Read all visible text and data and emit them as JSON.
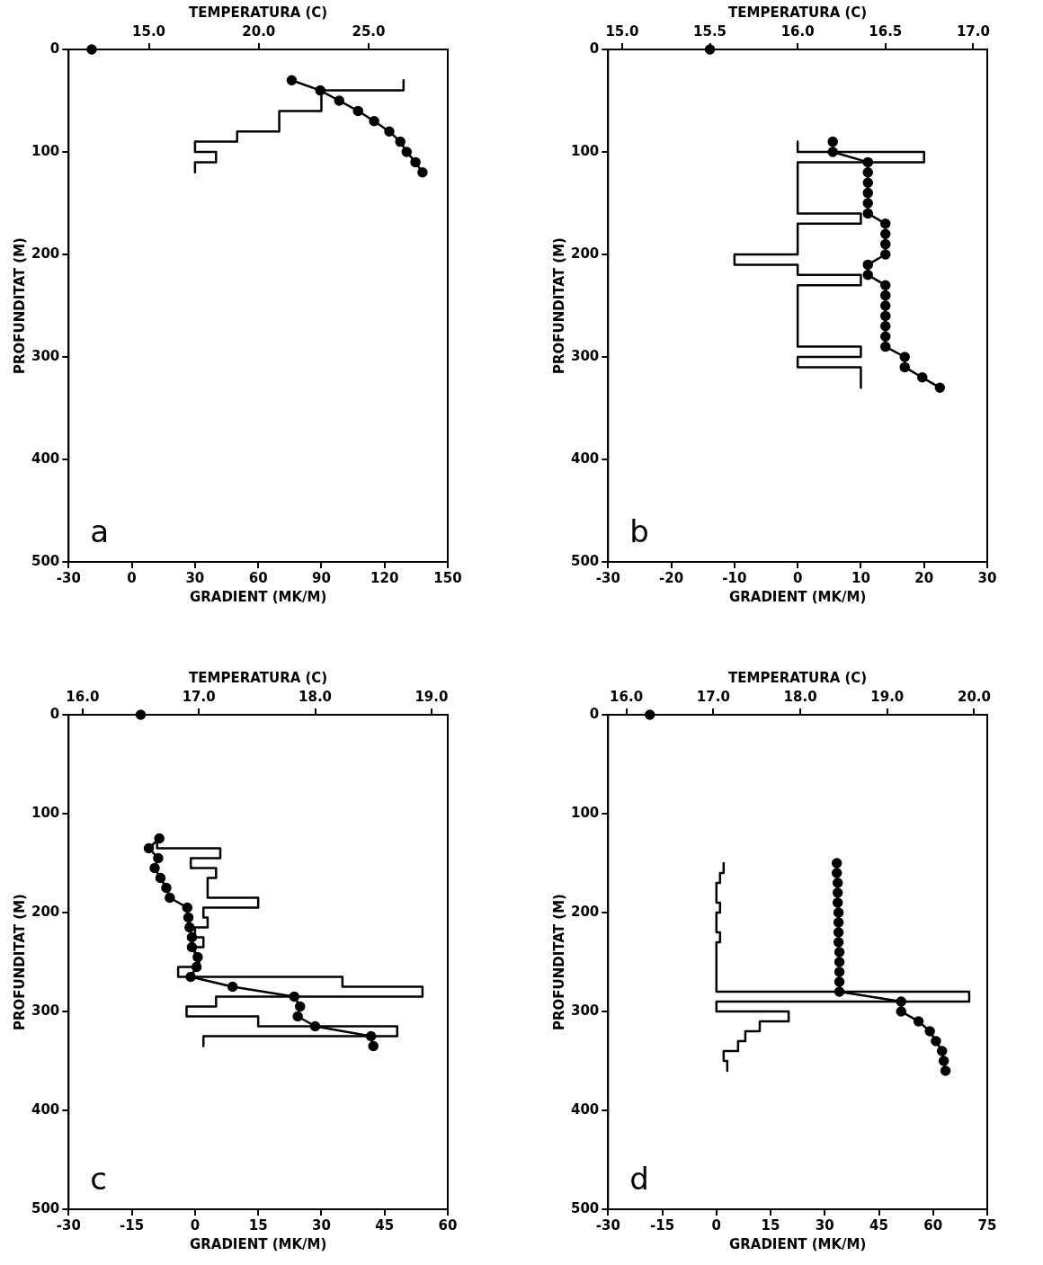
{
  "chart_data": [
    {
      "type": "line",
      "xlabel": "GRADIENT (MK/M)",
      "x2label": "TEMPERATURA (C)",
      "ylabel": "PROFUNDITAT (M)",
      "annotations": [
        "a"
      ],
      "xlim": [
        -30,
        150
      ],
      "xticks": [
        -30,
        0,
        30,
        60,
        90,
        120,
        150
      ],
      "x2lim": [
        11.35,
        28.6
      ],
      "x2ticks": [
        {
          "value": 15,
          "label": "15.0"
        },
        {
          "value": 20,
          "label": "20.0"
        },
        {
          "value": 25,
          "label": "25.0"
        }
      ],
      "ylim": [
        500,
        0
      ],
      "yticks": [
        0,
        100,
        200,
        300,
        400,
        500
      ],
      "series": [
        {
          "type": "line",
          "marker": "none",
          "color": "#000000",
          "x": [
            129,
            129,
            90,
            90,
            70,
            70,
            50,
            50,
            30,
            30,
            40,
            40,
            30,
            30
          ],
          "values": [
            30,
            40,
            40,
            60,
            60,
            80,
            80,
            90,
            90,
            100,
            100,
            110,
            110,
            120
          ]
        },
        {
          "type": "line",
          "marker": "circle",
          "axis": "x2",
          "color": "#000000",
          "x": [
            21.5,
            22.8,
            23.66,
            24.52,
            25.25,
            25.94,
            26.44,
            26.73,
            27.13,
            27.45
          ],
          "values": [
            30,
            40,
            50,
            60,
            70,
            80,
            90,
            100,
            110,
            120
          ]
        },
        {
          "type": "scatter",
          "marker": "circle",
          "axis": "x2",
          "color": "#000000",
          "x": [
            12.4
          ],
          "values": [
            0
          ]
        }
      ]
    },
    {
      "type": "line",
      "xlabel": "GRADIENT (MK/M)",
      "x2label": "TEMPERATURA (C)",
      "ylabel": "PROFUNDITAT (M)",
      "annotations": [
        "b"
      ],
      "xlim": [
        -30,
        30
      ],
      "xticks": [
        -30,
        -20,
        -10,
        0,
        10,
        20,
        30
      ],
      "x2lim": [
        14.92,
        17.08
      ],
      "x2ticks": [
        {
          "value": 15,
          "label": "15.0"
        },
        {
          "value": 15.5,
          "label": "15.5"
        },
        {
          "value": 16,
          "label": "16.0"
        },
        {
          "value": 16.5,
          "label": "16.5"
        },
        {
          "value": 17,
          "label": "17.0"
        }
      ],
      "ylim": [
        500,
        0
      ],
      "yticks": [
        0,
        100,
        200,
        300,
        400,
        500
      ],
      "series": [
        {
          "type": "line",
          "marker": "none",
          "color": "#000000",
          "x": [
            0,
            0,
            20,
            20,
            0,
            0,
            10,
            10,
            0,
            0,
            -10,
            -10,
            0,
            0,
            10,
            10,
            0,
            0,
            10,
            10,
            0,
            0,
            10,
            10
          ],
          "values": [
            90,
            100,
            100,
            110,
            110,
            160,
            160,
            170,
            170,
            200,
            200,
            210,
            210,
            220,
            220,
            230,
            230,
            290,
            290,
            300,
            300,
            310,
            310,
            330
          ]
        },
        {
          "type": "line",
          "marker": "circle",
          "axis": "x2",
          "color": "#000000",
          "x": [
            16.2,
            16.2,
            16.4,
            16.4,
            16.4,
            16.4,
            16.4,
            16.4,
            16.5,
            16.5,
            16.5,
            16.5,
            16.4,
            16.4,
            16.5,
            16.5,
            16.5,
            16.5,
            16.5,
            16.5,
            16.5,
            16.61,
            16.61,
            16.71,
            16.81
          ],
          "values": [
            90,
            100,
            110,
            120,
            130,
            140,
            150,
            160,
            170,
            180,
            190,
            200,
            210,
            220,
            230,
            240,
            250,
            260,
            270,
            280,
            290,
            300,
            310,
            320,
            330
          ]
        },
        {
          "type": "scatter",
          "marker": "circle",
          "axis": "x2",
          "color": "#000000",
          "x": [
            15.5
          ],
          "values": [
            0
          ]
        }
      ]
    },
    {
      "type": "line",
      "xlabel": "GRADIENT (MK/M)",
      "x2label": "TEMPERATURA (C)",
      "ylabel": "PROFUNDITAT (M)",
      "annotations": [
        "c"
      ],
      "xlim": [
        -30,
        60
      ],
      "xticks": [
        -30,
        -15,
        0,
        15,
        30,
        45,
        60
      ],
      "x2lim": [
        15.88,
        19.14
      ],
      "x2ticks": [
        {
          "value": 16,
          "label": "16.0"
        },
        {
          "value": 17,
          "label": "17.0"
        },
        {
          "value": 18,
          "label": "18.0"
        },
        {
          "value": 19,
          "label": "19.0"
        }
      ],
      "ylim": [
        500,
        0
      ],
      "yticks": [
        0,
        100,
        200,
        300,
        400,
        500
      ],
      "series": [
        {
          "type": "line",
          "marker": "none",
          "color": "#000000",
          "x": [
            -9,
            -9,
            6,
            6,
            -1,
            -1,
            5,
            5,
            3,
            3,
            15,
            15,
            2,
            2,
            3,
            3,
            0,
            0,
            2,
            2,
            0,
            0,
            1,
            1,
            -4,
            -4,
            35,
            35,
            54,
            54,
            5,
            5,
            -2,
            -2,
            15,
            15,
            48,
            48,
            2,
            2
          ],
          "values": [
            125,
            135,
            135,
            145,
            145,
            155,
            155,
            165,
            165,
            185,
            185,
            195,
            195,
            205,
            205,
            215,
            215,
            225,
            225,
            235,
            235,
            245,
            245,
            255,
            255,
            265,
            265,
            275,
            275,
            285,
            285,
            295,
            295,
            305,
            305,
            315,
            315,
            325,
            325,
            335
          ]
        },
        {
          "type": "line",
          "marker": "circle",
          "axis": "x2",
          "color": "#000000",
          "x": [
            16.66,
            16.57,
            16.65,
            16.62,
            16.67,
            16.72,
            16.75,
            16.9,
            16.91,
            16.92,
            16.94,
            16.94,
            16.99,
            16.98,
            16.93,
            17.29,
            17.82,
            17.87,
            17.85,
            18.0,
            18.48,
            18.5
          ],
          "values": [
            125,
            135,
            145,
            155,
            165,
            175,
            185,
            195,
            205,
            215,
            225,
            235,
            245,
            255,
            265,
            275,
            285,
            295,
            305,
            315,
            325,
            335
          ]
        },
        {
          "type": "scatter",
          "marker": "circle",
          "axis": "x2",
          "color": "#000000",
          "x": [
            16.5
          ],
          "values": [
            0
          ]
        }
      ]
    },
    {
      "type": "line",
      "xlabel": "GRADIENT (MK/M)",
      "x2label": "TEMPERATURA (C)",
      "ylabel": "PROFUNDITAT (M)",
      "annotations": [
        "d"
      ],
      "xlim": [
        -30,
        75
      ],
      "xticks": [
        -30,
        -15,
        0,
        15,
        30,
        45,
        60,
        75
      ],
      "x2lim": [
        15.79,
        20.15
      ],
      "x2ticks": [
        {
          "value": 16,
          "label": "16.0"
        },
        {
          "value": 17,
          "label": "17.0"
        },
        {
          "value": 18,
          "label": "18.0"
        },
        {
          "value": 19,
          "label": "19.0"
        },
        {
          "value": 20,
          "label": "20.0"
        }
      ],
      "ylim": [
        500,
        0
      ],
      "yticks": [
        0,
        100,
        200,
        300,
        400,
        500
      ],
      "series": [
        {
          "type": "line",
          "marker": "none",
          "color": "#000000",
          "x": [
            2,
            2,
            1,
            1,
            0,
            0,
            1,
            1,
            0,
            0,
            1,
            1,
            0,
            0,
            70,
            70,
            0,
            0,
            20,
            20,
            12,
            12,
            8,
            8,
            6,
            6,
            2,
            2,
            3,
            3
          ],
          "values": [
            150,
            160,
            160,
            170,
            170,
            190,
            190,
            200,
            200,
            220,
            220,
            230,
            230,
            280,
            280,
            290,
            290,
            300,
            300,
            310,
            310,
            320,
            320,
            330,
            330,
            340,
            340,
            350,
            350,
            360
          ]
        },
        {
          "type": "line",
          "marker": "circle",
          "axis": "x2",
          "color": "#000000",
          "x": [
            18.42,
            18.42,
            18.43,
            18.43,
            18.43,
            18.44,
            18.44,
            18.44,
            18.44,
            18.45,
            18.45,
            18.45,
            18.45,
            18.45,
            19.16,
            19.16,
            19.36,
            19.49,
            19.56,
            19.63,
            19.65,
            19.67
          ],
          "values": [
            150,
            160,
            170,
            180,
            190,
            200,
            210,
            220,
            230,
            240,
            250,
            260,
            270,
            280,
            290,
            300,
            310,
            320,
            330,
            340,
            350,
            360
          ]
        },
        {
          "type": "scatter",
          "marker": "circle",
          "axis": "x2",
          "color": "#000000",
          "x": [
            16.27
          ],
          "values": [
            0
          ]
        }
      ]
    }
  ]
}
